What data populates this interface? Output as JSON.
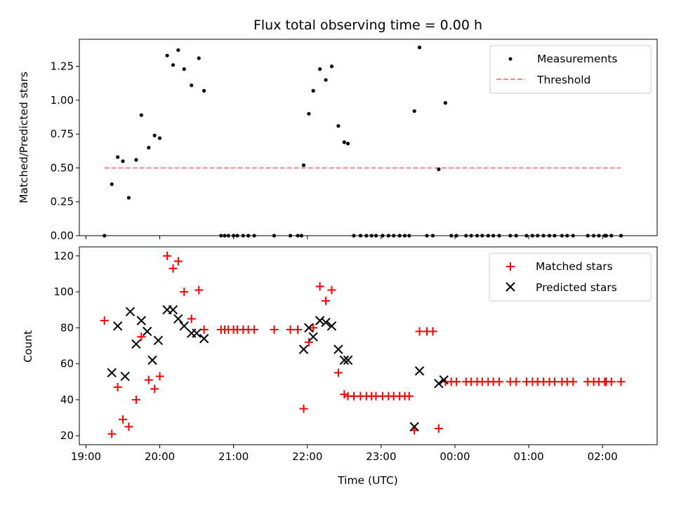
{
  "chart_data": [
    {
      "type": "scatter",
      "title": "Flux total observing time = 0.00 h",
      "ylabel": "Matched/Predicted stars",
      "xlim": [
        -0.09,
        7.74
      ],
      "ylim": [
        0,
        1.45
      ],
      "yticks": [
        0.0,
        0.25,
        0.5,
        0.75,
        1.0,
        1.25
      ],
      "ytick_labels": [
        "0.00",
        "0.25",
        "0.50",
        "0.75",
        "1.00",
        "1.25"
      ],
      "legend_position": "upper right",
      "series": [
        {
          "name": "Measurements",
          "marker": "dot",
          "color": "#000000",
          "x": [
            0.25,
            0.35,
            0.43,
            0.5,
            0.58,
            0.68,
            0.75,
            0.85,
            0.93,
            1.0,
            1.1,
            1.18,
            1.25,
            1.33,
            1.43,
            1.53,
            1.6,
            1.83,
            1.88,
            1.93,
            2.0,
            2.05,
            2.13,
            2.2,
            2.28,
            2.55,
            2.77,
            2.87,
            2.92,
            2.95,
            3.02,
            3.08,
            3.17,
            3.25,
            3.33,
            3.42,
            3.5,
            3.55,
            3.63,
            3.72,
            3.8,
            3.87,
            3.93,
            4.02,
            4.1,
            4.17,
            4.25,
            4.32,
            4.38,
            4.45,
            4.52,
            4.62,
            4.7,
            4.78,
            4.87,
            4.95,
            5.02,
            5.15,
            5.22,
            5.3,
            5.37,
            5.45,
            5.52,
            5.6,
            5.75,
            5.83,
            5.97,
            6.05,
            6.12,
            6.2,
            6.28,
            6.35,
            6.45,
            6.52,
            6.6,
            6.8,
            6.88,
            6.95,
            7.03,
            7.05,
            7.12,
            7.25
          ],
          "y": [
            0.0,
            0.38,
            0.58,
            0.55,
            0.28,
            0.56,
            0.89,
            0.65,
            0.74,
            0.72,
            1.33,
            1.26,
            1.37,
            1.23,
            1.11,
            1.31,
            1.07,
            0.0,
            0.0,
            0.0,
            0.0,
            0.0,
            0.0,
            0.0,
            0.0,
            0.0,
            0.0,
            0.0,
            0.0,
            0.52,
            0.9,
            1.07,
            1.23,
            1.15,
            1.25,
            0.81,
            0.69,
            0.68,
            0.0,
            0.0,
            0.0,
            0.0,
            0.0,
            0.0,
            0.0,
            0.0,
            0.0,
            0.0,
            0.0,
            0.92,
            1.39,
            0.0,
            0.0,
            0.49,
            0.98,
            0.0,
            0.0,
            0.0,
            0.0,
            0.0,
            0.0,
            0.0,
            0.0,
            0.0,
            0.0,
            0.0,
            0.0,
            0.0,
            0.0,
            0.0,
            0.0,
            0.0,
            0.0,
            0.0,
            0.0,
            0.0,
            0.0,
            0.0,
            0.0,
            0.0,
            0.0,
            0.0
          ]
        },
        {
          "name": "Threshold",
          "type": "line",
          "linestyle": "dashed",
          "color": "#ff8080",
          "x": [
            0.25,
            7.25
          ],
          "y": [
            0.5,
            0.5
          ]
        }
      ]
    },
    {
      "type": "scatter",
      "xlabel": "Time (UTC)",
      "ylabel": "Count",
      "xlim": [
        -0.09,
        7.74
      ],
      "ylim": [
        15,
        125
      ],
      "yticks": [
        20,
        40,
        60,
        80,
        100,
        120
      ],
      "ytick_labels": [
        "20",
        "40",
        "60",
        "80",
        "100",
        "120"
      ],
      "xticks": [
        0,
        1,
        2,
        3,
        4,
        5,
        6,
        7
      ],
      "xtick_labels": [
        "19:00",
        "20:00",
        "21:00",
        "22:00",
        "23:00",
        "00:00",
        "01:00",
        "02:00"
      ],
      "legend_position": "upper right",
      "series": [
        {
          "name": "Matched stars",
          "marker": "plus",
          "color": "#ff0000",
          "x": [
            0.25,
            0.35,
            0.43,
            0.5,
            0.58,
            0.68,
            0.75,
            0.85,
            0.93,
            1.0,
            1.1,
            1.18,
            1.25,
            1.33,
            1.43,
            1.53,
            1.6,
            1.83,
            1.88,
            1.93,
            2.0,
            2.05,
            2.13,
            2.2,
            2.28,
            2.55,
            2.77,
            2.87,
            2.95,
            3.02,
            3.08,
            3.17,
            3.25,
            3.33,
            3.42,
            3.5,
            3.55,
            3.63,
            3.72,
            3.8,
            3.87,
            3.93,
            4.02,
            4.1,
            4.17,
            4.25,
            4.32,
            4.38,
            4.45,
            4.52,
            4.62,
            4.7,
            4.78,
            4.87,
            4.95,
            5.02,
            5.15,
            5.22,
            5.3,
            5.37,
            5.45,
            5.52,
            5.6,
            5.75,
            5.83,
            5.97,
            6.05,
            6.12,
            6.2,
            6.28,
            6.35,
            6.45,
            6.52,
            6.6,
            6.8,
            6.88,
            6.95,
            7.03,
            7.05,
            7.12,
            7.25
          ],
          "y": [
            84,
            21,
            47,
            29,
            25,
            40,
            75,
            51,
            46,
            53,
            120,
            113,
            117,
            100,
            85,
            101,
            79,
            79,
            79,
            79,
            79,
            79,
            79,
            79,
            79,
            79,
            79,
            79,
            35,
            72,
            80,
            103,
            95,
            101,
            55,
            43,
            42,
            42,
            42,
            42,
            42,
            42,
            42,
            42,
            42,
            42,
            42,
            42,
            23,
            78,
            78,
            78,
            24,
            50,
            50,
            50,
            50,
            50,
            50,
            50,
            50,
            50,
            50,
            50,
            50,
            50,
            50,
            50,
            50,
            50,
            50,
            50,
            50,
            50,
            50,
            50,
            50,
            50,
            50,
            50,
            50
          ]
        },
        {
          "name": "Predicted stars",
          "marker": "x",
          "color": "#000000",
          "x": [
            0.35,
            0.43,
            0.53,
            0.6,
            0.68,
            0.75,
            0.83,
            0.9,
            0.98,
            1.1,
            1.18,
            1.25,
            1.33,
            1.43,
            1.5,
            1.6,
            2.95,
            3.02,
            3.08,
            3.17,
            3.25,
            3.33,
            3.42,
            3.5,
            3.55,
            4.45,
            4.52,
            4.78,
            4.85
          ],
          "y": [
            55,
            81,
            53,
            89,
            71,
            84,
            78,
            62,
            73,
            90,
            90,
            85,
            81,
            77,
            77,
            74,
            68,
            80,
            75,
            84,
            83,
            81,
            68,
            62,
            62,
            25,
            56,
            49,
            51
          ]
        }
      ]
    }
  ]
}
